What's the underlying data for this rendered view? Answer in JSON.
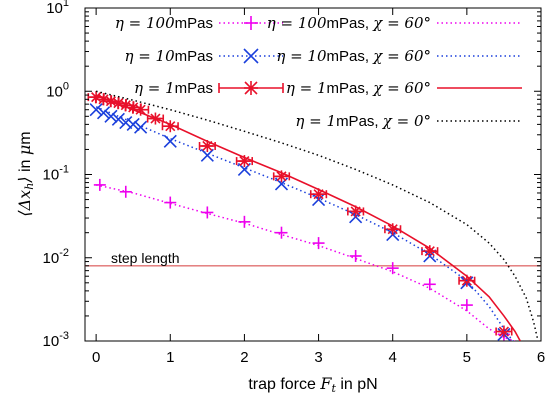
{
  "chart_data": {
    "type": "scatter",
    "xlabel": "trap force F_t in pN",
    "xlabel_parts": {
      "pre": "trap force ",
      "sym": "F",
      "sub": "t",
      "post": " in pN"
    },
    "ylabel": "⟨Δx_h⟩ in μm",
    "ylabel_parts": {
      "sym": "⟨Δx",
      "sub": "h",
      "close": "⟩",
      "post": " in ",
      "unit_sym": "μ",
      "unit": "m"
    },
    "xlim": [
      -0.15,
      6
    ],
    "ylim": [
      0.001,
      10
    ],
    "yscale": "log",
    "grid": false,
    "legend_position": "top-right",
    "x_ticks": [
      "0",
      "1",
      "2",
      "3",
      "4",
      "5",
      "6"
    ],
    "x_tick_values": [
      0,
      1,
      2,
      3,
      4,
      5,
      6
    ],
    "y_ticks": [
      {
        "value": 0.001,
        "base": "10",
        "exp": "-3"
      },
      {
        "value": 0.01,
        "base": "10",
        "exp": "-2"
      },
      {
        "value": 0.1,
        "base": "10",
        "exp": "-1"
      },
      {
        "value": 1,
        "base": "10",
        "exp": "0"
      },
      {
        "value": 10,
        "base": "10",
        "exp": "1"
      }
    ],
    "reference_line": {
      "label": "step length",
      "y": 0.008,
      "color": "#e07070"
    },
    "series": [
      {
        "name_parts": {
          "sym": "η",
          "eq": " = 100",
          "unit": "mPas"
        },
        "marker": "plus",
        "color": "#ee00ee",
        "x": [
          0.05,
          0.4,
          1.0,
          1.5,
          2.0,
          2.5,
          3.0,
          3.5,
          4.0,
          4.5,
          5.0,
          5.5
        ],
        "y": [
          0.075,
          0.062,
          0.046,
          0.035,
          0.027,
          0.02,
          0.015,
          0.0105,
          0.0075,
          0.0048,
          0.0027,
          0.0012
        ]
      },
      {
        "name_parts": {
          "sym": "η",
          "eq": " = 10",
          "unit": "mPas"
        },
        "marker": "x",
        "color": "#1a3fdc",
        "x": [
          0.0,
          0.1,
          0.2,
          0.3,
          0.4,
          0.5,
          0.6,
          1.0,
          1.5,
          2.0,
          2.5,
          3.0,
          3.5,
          4.0,
          4.5,
          5.0,
          5.5
        ],
        "y": [
          0.6,
          0.55,
          0.5,
          0.46,
          0.42,
          0.4,
          0.37,
          0.25,
          0.17,
          0.115,
          0.077,
          0.05,
          0.031,
          0.019,
          0.0105,
          0.005,
          0.0012
        ]
      },
      {
        "name_parts": {
          "sym": "η",
          "eq": " = 1",
          "unit": "mPas"
        },
        "marker": "star-errorbar",
        "color": "#e8102a",
        "x": [
          0.0,
          0.1,
          0.2,
          0.3,
          0.4,
          0.5,
          0.6,
          0.8,
          1.0,
          1.5,
          2.0,
          2.5,
          3.0,
          3.5,
          4.0,
          4.5,
          5.0,
          5.5
        ],
        "y": [
          0.85,
          0.8,
          0.76,
          0.72,
          0.68,
          0.64,
          0.6,
          0.47,
          0.38,
          0.22,
          0.145,
          0.095,
          0.058,
          0.036,
          0.022,
          0.012,
          0.0053,
          0.0013
        ]
      },
      {
        "name_parts": {
          "sym": "η",
          "eq": " = 100",
          "unit": "mPas",
          "chi_sym": "χ",
          "chi_val": " = 60°"
        },
        "style": "dotted-line",
        "color": "#ee00ee",
        "x": [
          0.0,
          0.5,
          1.0,
          1.5,
          2.0,
          2.5,
          3.0,
          3.5,
          4.0,
          4.5,
          5.0,
          5.3,
          5.5,
          5.65
        ],
        "y": [
          0.075,
          0.06,
          0.045,
          0.034,
          0.026,
          0.019,
          0.014,
          0.0098,
          0.0068,
          0.0043,
          0.0023,
          0.0014,
          0.0011,
          0.001
        ]
      },
      {
        "name_parts": {
          "sym": "η",
          "eq": " = 10",
          "unit": "mPas",
          "chi_sym": "χ",
          "chi_val": " = 60°"
        },
        "style": "dotted-line",
        "color": "#1a3fdc",
        "x": [
          0.0,
          0.5,
          1.0,
          1.5,
          2.0,
          2.5,
          3.0,
          3.5,
          4.0,
          4.5,
          5.0,
          5.3,
          5.5,
          5.62
        ],
        "y": [
          0.65,
          0.42,
          0.27,
          0.18,
          0.12,
          0.08,
          0.052,
          0.033,
          0.02,
          0.011,
          0.0053,
          0.0026,
          0.0014,
          0.001
        ]
      },
      {
        "name_parts": {
          "sym": "η",
          "eq": " = 1",
          "unit": "mPas",
          "chi_sym": "χ",
          "chi_val": " = 60°"
        },
        "style": "solid-line",
        "color": "#e8102a",
        "x": [
          0.0,
          0.5,
          1.0,
          1.5,
          2.0,
          2.5,
          3.0,
          3.5,
          4.0,
          4.5,
          5.0,
          5.3,
          5.5,
          5.65,
          5.72
        ],
        "y": [
          0.9,
          0.6,
          0.4,
          0.25,
          0.16,
          0.105,
          0.066,
          0.041,
          0.024,
          0.013,
          0.006,
          0.0034,
          0.002,
          0.0013,
          0.001
        ]
      },
      {
        "name_parts": {
          "sym": "η",
          "eq": " = 1",
          "unit": "mPas",
          "chi_sym": "χ",
          "chi_val": " = 0°"
        },
        "style": "dotted-line",
        "color": "#000000",
        "x": [
          0.0,
          0.5,
          1.0,
          1.5,
          2.0,
          2.5,
          3.0,
          3.5,
          4.0,
          4.5,
          5.0,
          5.3,
          5.5,
          5.65,
          5.8,
          5.9,
          5.96
        ],
        "y": [
          1.0,
          0.78,
          0.6,
          0.45,
          0.33,
          0.24,
          0.17,
          0.115,
          0.075,
          0.046,
          0.025,
          0.015,
          0.0095,
          0.006,
          0.0033,
          0.0017,
          0.001
        ]
      }
    ]
  }
}
